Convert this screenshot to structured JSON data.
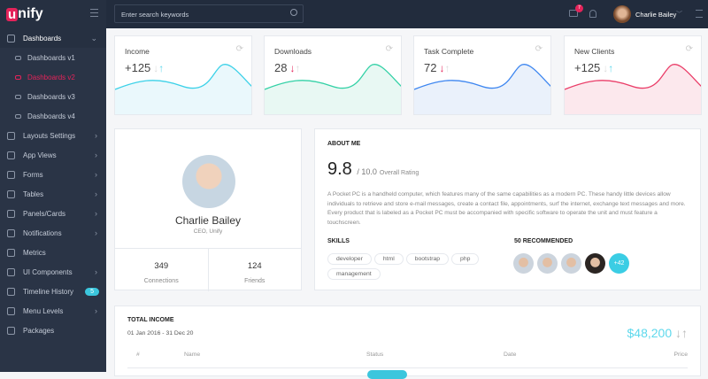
{
  "brand": {
    "logo_letter": "u",
    "logo_rest": "nify"
  },
  "sidebar": {
    "items": [
      {
        "label": "Dashboards",
        "icon": "database-icon",
        "open": true
      },
      {
        "label": "Dashboards v1",
        "icon": "link-icon",
        "sub": true
      },
      {
        "label": "Dashboards v2",
        "icon": "monitor-icon",
        "sub": true,
        "active": true
      },
      {
        "label": "Dashboards v3",
        "icon": "drive-icon",
        "sub": true
      },
      {
        "label": "Dashboards v4",
        "icon": "drive-icon",
        "sub": true
      },
      {
        "label": "Layouts Settings",
        "icon": "gear-icon"
      },
      {
        "label": "App Views",
        "icon": "layers-icon"
      },
      {
        "label": "Forms",
        "icon": "pencil-icon"
      },
      {
        "label": "Tables",
        "icon": "table-icon"
      },
      {
        "label": "Panels/Cards",
        "icon": "panel-icon"
      },
      {
        "label": "Notifications",
        "icon": "bell-icon"
      },
      {
        "label": "Metrics",
        "icon": "graph-icon"
      },
      {
        "label": "UI Components",
        "icon": "settings-icon"
      },
      {
        "label": "Timeline History",
        "icon": "timeline-icon",
        "badge": "5"
      },
      {
        "label": "Menu Levels",
        "icon": "menu-icon"
      },
      {
        "label": "Packages",
        "icon": "cup-icon"
      }
    ]
  },
  "topbar": {
    "search_placeholder": "Enter search keywords",
    "chat_badge": "7",
    "user_name": "Charlie Bailey"
  },
  "stats": [
    {
      "title": "Income",
      "value": "+125",
      "trend": "up",
      "color": "#3bd1e8",
      "fill": "#eaf8fc"
    },
    {
      "title": "Downloads",
      "value": "28",
      "trend": "down",
      "color": "#33d1a6",
      "fill": "#e8f8f3"
    },
    {
      "title": "Task Complete",
      "value": "72",
      "trend": "down",
      "color": "#3d86f0",
      "fill": "#eaf1fb"
    },
    {
      "title": "New Clients",
      "value": "+125",
      "trend": "up",
      "color": "#ea3d68",
      "fill": "#fce8ed"
    }
  ],
  "profile": {
    "name": "Charlie Bailey",
    "role": "CEO, Unify",
    "connections": "349",
    "connections_label": "Connections",
    "friends": "124",
    "friends_label": "Friends"
  },
  "about": {
    "heading": "ABOUT ME",
    "rating": "9.8",
    "rating_max": "/ 10.0",
    "rating_label": "Overall Rating",
    "text": "A Pocket PC is a handheld computer, which features many of the same capabilities as a modern PC. These handy little devices allow individuals to retrieve and store e-mail messages, create a contact file, appointments, surf the internet, exchange text messages and more. Every product that is labeled as a Pocket PC must be accompanied with specific software to operate the unit and must feature a touchscreen.",
    "skills_heading": "SKILLS",
    "skills": [
      "developer",
      "html",
      "bootstrap",
      "php",
      "management"
    ],
    "recommended_heading": "50 RECOMMENDED",
    "recommended_more": "+42"
  },
  "income": {
    "heading": "TOTAL INCOME",
    "range": "01 Jan 2016 - 31 Dec 20",
    "amount": "$48,200",
    "columns": [
      "#",
      "Name",
      "Status",
      "Date",
      "Price"
    ]
  }
}
